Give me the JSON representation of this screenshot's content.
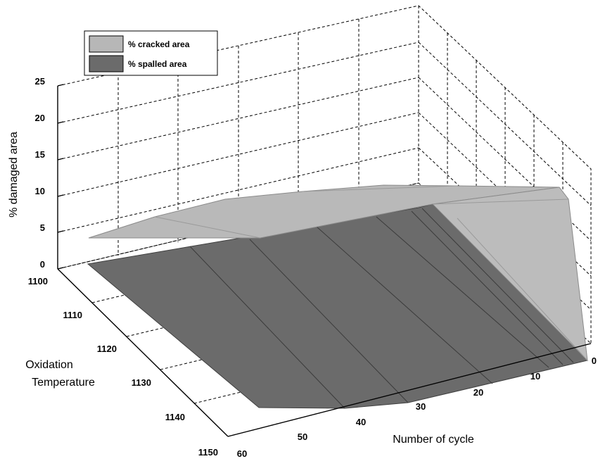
{
  "chart_data": {
    "type": "surface3d",
    "zlabel": "% damaged area",
    "xlabel": "Number of cycle",
    "ylabel_lines": [
      "Oxidation",
      "Temperature"
    ],
    "z_ticks": [
      "0",
      "5",
      "10",
      "15",
      "20",
      "25"
    ],
    "x_ticks": [
      "0",
      "10",
      "20",
      "30",
      "40",
      "50",
      "60"
    ],
    "y_ticks": [
      "1100",
      "1110",
      "1120",
      "1130",
      "1140",
      "1150"
    ],
    "zlim": [
      0,
      25
    ],
    "xlim": [
      0,
      60
    ],
    "ylim": [
      1100,
      1150
    ],
    "grid": true,
    "legend_position": "top-left",
    "series": [
      {
        "name": "% cracked area",
        "color": "#b7b7b7"
      },
      {
        "name": "% spalled area",
        "color": "#6b6b6b"
      }
    ]
  }
}
